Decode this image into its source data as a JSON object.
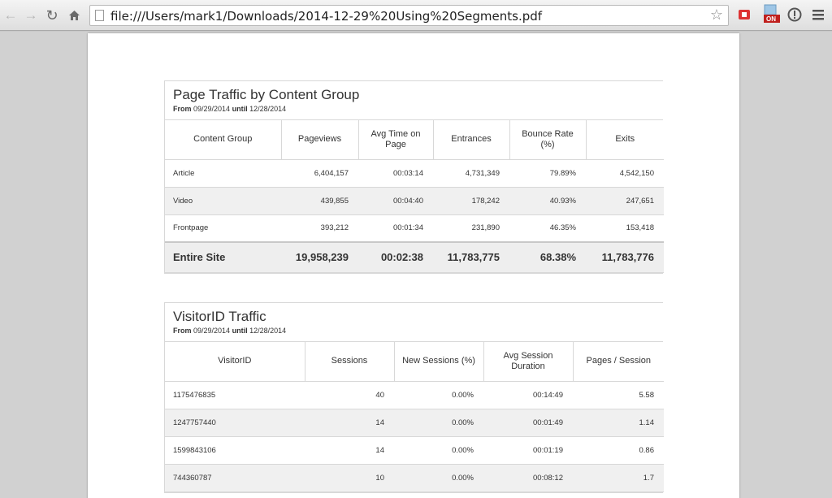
{
  "browser": {
    "url": "file:///Users/mark1/Downloads/2014-12-29%20Using%20Segments.pdf",
    "back_icon": "back-arrow-icon",
    "forward_icon": "forward-arrow-icon",
    "reload_icon": "reload-icon",
    "home_icon": "home-icon",
    "extension_badge": "ON"
  },
  "content_group_report": {
    "title": "Page Traffic by Content Group",
    "range_label_from": "From",
    "range_start": "09/29/2014",
    "range_label_until": "until",
    "range_end": "12/28/2014",
    "columns": [
      "Content Group",
      "Pageviews",
      "Avg Time on Page",
      "Entrances",
      "Bounce Rate (%)",
      "Exits"
    ],
    "rows": [
      [
        "Article",
        "6,404,157",
        "00:03:14",
        "4,731,349",
        "79.89%",
        "4,542,150"
      ],
      [
        "Video",
        "439,855",
        "00:04:40",
        "178,242",
        "40.93%",
        "247,651"
      ],
      [
        "Frontpage",
        "393,212",
        "00:01:34",
        "231,890",
        "46.35%",
        "153,418"
      ]
    ],
    "total": [
      "Entire Site",
      "19,958,239",
      "00:02:38",
      "11,783,775",
      "68.38%",
      "11,783,776"
    ]
  },
  "visitor_report": {
    "title": "VisitorID Traffic",
    "range_label_from": "From",
    "range_start": "09/29/2014",
    "range_label_until": "until",
    "range_end": "12/28/2014",
    "columns": [
      "VisitorID",
      "Sessions",
      "New Sessions (%)",
      "Avg Session Duration",
      "Pages / Session"
    ],
    "rows": [
      [
        "1175476835",
        "40",
        "0.00%",
        "00:14:49",
        "5.58"
      ],
      [
        "1247757440",
        "14",
        "0.00%",
        "00:01:49",
        "1.14"
      ],
      [
        "1599843106",
        "14",
        "0.00%",
        "00:01:19",
        "0.86"
      ],
      [
        "744360787",
        "10",
        "0.00%",
        "00:08:12",
        "1.7"
      ]
    ]
  }
}
